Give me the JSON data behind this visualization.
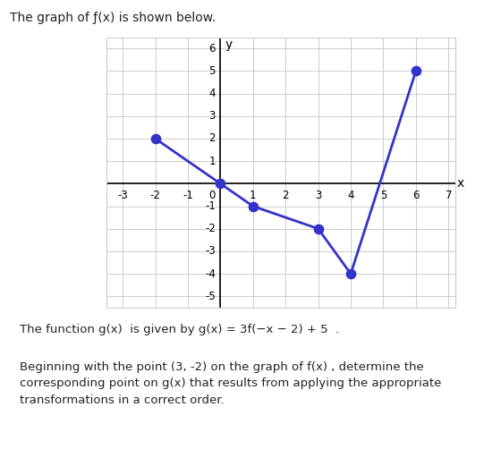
{
  "title": "The graph of ƒ(x) is shown below.",
  "graph_points": [
    [
      -2,
      2
    ],
    [
      0,
      0
    ],
    [
      1,
      -1
    ],
    [
      3,
      -2
    ],
    [
      4,
      -4
    ],
    [
      6,
      5
    ]
  ],
  "dot_color": "#3333cc",
  "line_color": "#3333cc",
  "xlim": [
    -3.5,
    7.2
  ],
  "ylim": [
    -5.5,
    6.5
  ],
  "xticks": [
    -3,
    -2,
    -1,
    0,
    1,
    2,
    3,
    4,
    5,
    6,
    7
  ],
  "yticks": [
    -5,
    -4,
    -3,
    -2,
    -1,
    0,
    1,
    2,
    3,
    4,
    5,
    6
  ],
  "xlabel": "x",
  "ylabel": "y",
  "text1_plain": "The function g(x)  is given by g(x) = 3f(−x − 2) + 5  .",
  "text2": "Beginning with the point (3, -2) on the graph of f(x) , determine the\ncorresponding point on g(x) that results from applying the appropriate\ntransformations in a correct order.",
  "dot_size": 55,
  "line_width": 2.0,
  "fig_width": 5.41,
  "fig_height": 5.21,
  "dpi": 100,
  "grid_color": "#cccccc",
  "axis_color": "#000000",
  "tick_fontsize": 8.5,
  "label_fontsize": 10,
  "box_color": "#cccccc"
}
